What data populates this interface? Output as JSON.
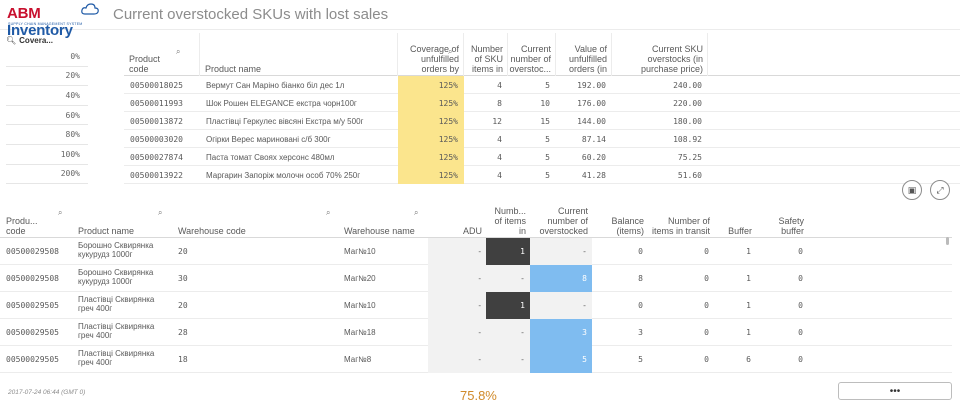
{
  "header": {
    "logo_main_a": "ABM",
    "logo_main_b": " Inventory",
    "logo_sub": "SUPPLY CHAIN MANAGEMENT SYSTEM",
    "title": "Current overstocked SKUs with lost sales"
  },
  "filter": {
    "label": "Covera...",
    "items": [
      "0%",
      "20%",
      "40%",
      "60%",
      "80%",
      "100%",
      "200%"
    ]
  },
  "table1": {
    "columns": [
      "Product code",
      "Product name",
      "Coverage of unfulfilled orders by",
      "Number of SKU items in",
      "Current number of overstoc...",
      "Value of unfulfilled orders (in",
      "Current SKU overstocks (in purchase price)"
    ],
    "rows": [
      [
        "00500018025",
        "Вермут Сан Маріно біанко біл дес 1л",
        "125%",
        "4",
        "5",
        "192.00",
        "240.00"
      ],
      [
        "00500011993",
        "Шок Рошен ELEGANCE екстра чорн100г",
        "125%",
        "8",
        "10",
        "176.00",
        "220.00"
      ],
      [
        "00500013872",
        "Пластівці Геркулес вівсяні Екстра м/у 500г",
        "125%",
        "12",
        "15",
        "144.00",
        "180.00"
      ],
      [
        "00500003020",
        "Огірки Верес мариновані с/б 300г",
        "125%",
        "4",
        "5",
        "87.14",
        "108.92"
      ],
      [
        "00500027874",
        "Паста томат Своях херсонс 480мл",
        "125%",
        "4",
        "5",
        "60.20",
        "75.25"
      ],
      [
        "00500013922",
        "Маргарин Запоріж молочн особ 70% 250г",
        "125%",
        "4",
        "5",
        "41.28",
        "51.60"
      ]
    ]
  },
  "table2": {
    "columns": [
      "Produ... code",
      "Product name",
      "Warehouse code",
      "Warehouse name",
      "ADU",
      "Numb... of items in",
      "Current number of overstocked",
      "Balance (items)",
      "Number of items in transit",
      "Buffer",
      "Safety buffer"
    ],
    "rows": [
      [
        "00500029508",
        "Борошно Сквирянка кукурудз 1000г",
        "20",
        "Маг№10",
        "-",
        "1",
        "-",
        "0",
        "0",
        "1",
        "0"
      ],
      [
        "00500029508",
        "Борошно Сквирянка кукурудз 1000г",
        "30",
        "Маг№20",
        "-",
        "-",
        "8",
        "8",
        "0",
        "1",
        "0"
      ],
      [
        "00500029505",
        "Пластівці Сквирянка греч 400г",
        "20",
        "Маг№10",
        "-",
        "1",
        "-",
        "0",
        "0",
        "1",
        "0"
      ],
      [
        "00500029505",
        "Пластівці Сквирянка греч 400г",
        "28",
        "Маг№18",
        "-",
        "-",
        "3",
        "3",
        "0",
        "1",
        "0"
      ],
      [
        "00500029505",
        "Пластівці Сквирянка греч 400г",
        "18",
        "Маг№8",
        "-",
        "-",
        "5",
        "5",
        "0",
        "6",
        "0"
      ]
    ]
  },
  "footer": {
    "timestamp": "2017-07-24 06:44 (GMT 0)",
    "kpi": "75.8%",
    "more": "•••"
  }
}
